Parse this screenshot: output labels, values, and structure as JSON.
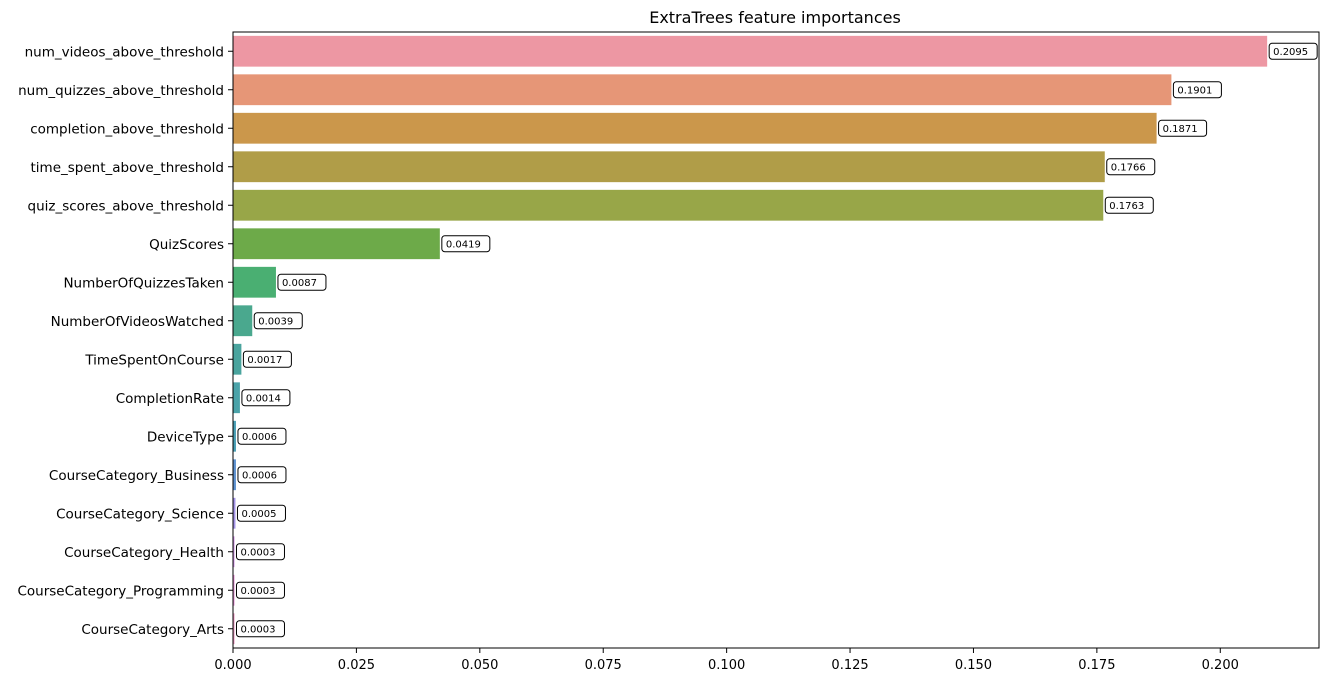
{
  "chart_data": {
    "type": "bar",
    "orientation": "horizontal",
    "title": "ExtraTrees feature importances",
    "xlabel": "",
    "ylabel": "",
    "xlim": [
      0,
      0.22
    ],
    "xticks": [
      "0.000",
      "0.025",
      "0.050",
      "0.075",
      "0.100",
      "0.125",
      "0.150",
      "0.175",
      "0.200"
    ],
    "xtick_values": [
      0,
      0.025,
      0.05,
      0.075,
      0.1,
      0.125,
      0.15,
      0.175,
      0.2
    ],
    "grid": false,
    "legend": "none",
    "categories": [
      "num_videos_above_threshold",
      "num_quizzes_above_threshold",
      "completion_above_threshold",
      "time_spent_above_threshold",
      "quiz_scores_above_threshold",
      "QuizScores",
      "NumberOfQuizzesTaken",
      "NumberOfVideosWatched",
      "TimeSpentOnCourse",
      "CompletionRate",
      "DeviceType",
      "CourseCategory_Business",
      "CourseCategory_Science",
      "CourseCategory_Health",
      "CourseCategory_Programming",
      "CourseCategory_Arts"
    ],
    "values": [
      0.2095,
      0.1901,
      0.1871,
      0.1766,
      0.1763,
      0.0419,
      0.0087,
      0.0039,
      0.0017,
      0.0014,
      0.0006,
      0.0006,
      0.0005,
      0.0003,
      0.0003,
      0.0003
    ],
    "data_labels": [
      "0.2095",
      "0.1901",
      "0.1871",
      "0.1766",
      "0.1763",
      "0.0419",
      "0.0087",
      "0.0039",
      "0.0017",
      "0.0014",
      "0.0006",
      "0.0006",
      "0.0005",
      "0.0003",
      "0.0003",
      "0.0003"
    ],
    "colors": [
      "#ed97a3",
      "#e69677",
      "#cb974b",
      "#b09d48",
      "#98a648",
      "#6daa49",
      "#4aaf72",
      "#4aa88e",
      "#4aa49e",
      "#4ba3a9",
      "#4a9fb5",
      "#5f92d1",
      "#a494e7",
      "#d191e6",
      "#e48dd5",
      "#eb93be"
    ]
  }
}
